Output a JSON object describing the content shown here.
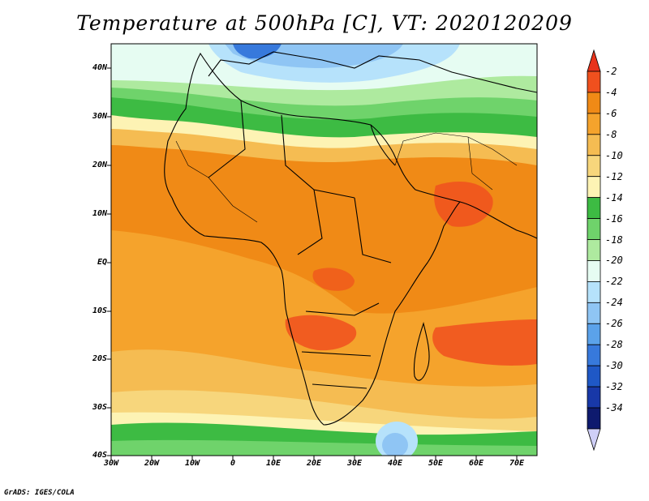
{
  "title": "Temperature at 500hPa [C], VT: 2020120209",
  "credit": "GrADS: IGES/COLA",
  "lat_labels": [
    "40N",
    "30N",
    "20N",
    "10N",
    "EQ",
    "10S",
    "20S",
    "30S",
    "40S"
  ],
  "lon_labels": [
    "30W",
    "20W",
    "10W",
    "0",
    "10E",
    "20E",
    "30E",
    "40E",
    "50E",
    "60E",
    "70E"
  ],
  "colorbar": {
    "labels": [
      "-2",
      "-4",
      "-6",
      "-8",
      "-10",
      "-12",
      "-14",
      "-16",
      "-18",
      "-20",
      "-22",
      "-24",
      "-26",
      "-28",
      "-30",
      "-32",
      "-34"
    ],
    "colors": [
      "#f0501e",
      "#f08a16",
      "#f5a32c",
      "#f5bc52",
      "#f7d67c",
      "#fdf3b4",
      "#3dbb43",
      "#6fd36b",
      "#aeea9f",
      "#e6fcf2",
      "#b6e2fb",
      "#8fc5f4",
      "#5ba2ea",
      "#3779dc",
      "#1f58c6",
      "#1838a8",
      "#0e1a6e"
    ],
    "top_cap_color": "#e8331b",
    "bottom_cap_color": "#cfcff7"
  },
  "map": {
    "lon_range": [
      -30,
      75
    ],
    "lat_range": [
      -40,
      45
    ]
  }
}
